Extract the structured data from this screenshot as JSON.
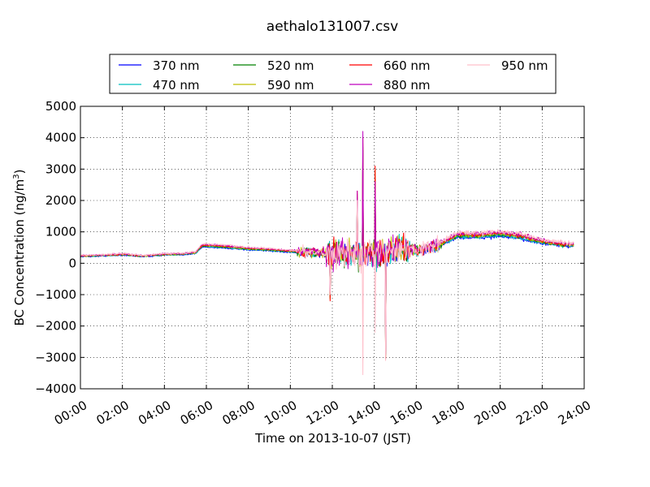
{
  "chart_data": {
    "type": "line",
    "title": "aethalo131007.csv",
    "xlabel": "Time on 2013-10-07 (JST)",
    "ylabel": "BC Concentration (ng/m³)",
    "ylabel_main": "BC Concentration (ng/m",
    "ylabel_sup": "3",
    "ylabel_end": ")",
    "xlim": [
      0,
      24
    ],
    "ylim": [
      -4000,
      5000
    ],
    "grid": true,
    "legend_position": "top",
    "x_ticks": [
      0,
      2,
      4,
      6,
      8,
      10,
      12,
      14,
      16,
      18,
      20,
      22,
      24
    ],
    "x_tick_labels": [
      "00:00",
      "02:00",
      "04:00",
      "06:00",
      "08:00",
      "10:00",
      "12:00",
      "14:00",
      "16:00",
      "18:00",
      "20:00",
      "22:00",
      "24:00"
    ],
    "y_ticks": [
      -4000,
      -3000,
      -2000,
      -1000,
      0,
      1000,
      2000,
      3000,
      4000,
      5000
    ],
    "y_tick_labels": [
      "−4000",
      "−3000",
      "−2000",
      "−1000",
      "0",
      "1000",
      "2000",
      "3000",
      "4000",
      "5000"
    ],
    "base_profile": {
      "x": [
        0,
        1,
        2,
        3,
        4,
        5,
        5.5,
        5.8,
        6,
        7,
        8,
        9,
        10,
        11,
        12,
        13,
        14,
        15,
        15.5,
        16,
        17,
        18,
        19,
        20,
        21,
        22,
        23,
        23.5
      ],
      "y": [
        230,
        250,
        280,
        230,
        280,
        300,
        340,
        560,
        560,
        520,
        460,
        430,
        380,
        340,
        320,
        300,
        280,
        400,
        480,
        400,
        560,
        900,
        880,
        930,
        850,
        680,
        600,
        580
      ]
    },
    "series": [
      {
        "name": "370 nm",
        "color": "#0000ff"
      },
      {
        "name": "470 nm",
        "color": "#00bfbf"
      },
      {
        "name": "520 nm",
        "color": "#008000"
      },
      {
        "name": "590 nm",
        "color": "#bfbf00"
      },
      {
        "name": "660 nm",
        "color": "#ff0000"
      },
      {
        "name": "880 nm",
        "color": "#bf00bf"
      },
      {
        "name": "950 nm",
        "color": "#ffc0cb"
      }
    ]
  }
}
